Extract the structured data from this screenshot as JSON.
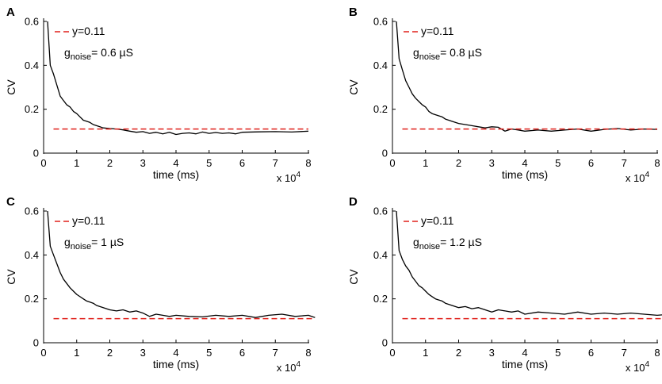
{
  "panels": [
    {
      "chart_data": {
        "type": "line",
        "panel_label": "A",
        "xlabel": "time (ms)",
        "ylabel": "CV",
        "x_multiplier": "x 10^4",
        "xlim": [
          0,
          8
        ],
        "ylim": [
          0,
          0.6
        ],
        "xticks": [
          "0",
          "1",
          "2",
          "3",
          "4",
          "5",
          "6",
          "7",
          "8"
        ],
        "yticks": [
          "0",
          "0.2",
          "0.4",
          "0.6"
        ],
        "legend": {
          "label": "y=0.11",
          "noise_symbol": "g",
          "noise_sub": "noise",
          "noise_value": "= 0.6 µS"
        },
        "series": [
          {
            "name": "CV",
            "color": "#000000",
            "x": [
              0.12,
              0.2,
              0.3,
              0.4,
              0.5,
              0.6,
              0.7,
              0.8,
              0.9,
              1.0,
              1.1,
              1.2,
              1.3,
              1.4,
              1.5,
              1.6,
              1.7,
              1.8,
              2.0,
              2.2,
              2.4,
              2.6,
              2.8,
              3.0,
              3.2,
              3.4,
              3.6,
              3.8,
              4.0,
              4.2,
              4.4,
              4.6,
              4.8,
              5.0,
              5.2,
              5.4,
              5.6,
              5.8,
              6.0,
              6.5,
              7.0,
              7.5,
              8.0
            ],
            "y": [
              0.6,
              0.4,
              0.36,
              0.31,
              0.26,
              0.24,
              0.22,
              0.21,
              0.19,
              0.18,
              0.165,
              0.15,
              0.145,
              0.14,
              0.13,
              0.125,
              0.12,
              0.115,
              0.112,
              0.11,
              0.106,
              0.1,
              0.095,
              0.098,
              0.09,
              0.095,
              0.088,
              0.095,
              0.085,
              0.09,
              0.092,
              0.088,
              0.096,
              0.09,
              0.094,
              0.09,
              0.092,
              0.088,
              0.095,
              0.097,
              0.098,
              0.096,
              0.1
            ]
          },
          {
            "name": "y=0.11",
            "color": "#e0201b",
            "dashed": true,
            "x": [
              0.3,
              8.0
            ],
            "y": [
              0.11,
              0.11
            ]
          }
        ]
      }
    },
    {
      "chart_data": {
        "type": "line",
        "panel_label": "B",
        "xlabel": "time (ms)",
        "ylabel": "CV",
        "x_multiplier": "x 10^4",
        "xlim": [
          0,
          8
        ],
        "ylim": [
          0,
          0.6
        ],
        "xticks": [
          "0",
          "1",
          "2",
          "3",
          "4",
          "5",
          "6",
          "7",
          "8"
        ],
        "yticks": [
          "0",
          "0.2",
          "0.4",
          "0.6"
        ],
        "legend": {
          "label": "y=0.11",
          "noise_symbol": "g",
          "noise_sub": "noise",
          "noise_value": "= 0.8 µS"
        },
        "series": [
          {
            "name": "CV",
            "color": "#000000",
            "x": [
              0.12,
              0.2,
              0.3,
              0.4,
              0.5,
              0.6,
              0.7,
              0.8,
              0.9,
              1.0,
              1.1,
              1.2,
              1.3,
              1.4,
              1.5,
              1.6,
              1.7,
              1.8,
              1.9,
              2.0,
              2.2,
              2.4,
              2.6,
              2.8,
              3.0,
              3.2,
              3.4,
              3.6,
              3.8,
              4.0,
              4.4,
              4.8,
              5.2,
              5.6,
              6.0,
              6.4,
              6.8,
              7.2,
              7.6,
              8.0
            ],
            "y": [
              0.6,
              0.43,
              0.38,
              0.33,
              0.3,
              0.27,
              0.25,
              0.235,
              0.22,
              0.21,
              0.19,
              0.18,
              0.175,
              0.17,
              0.165,
              0.155,
              0.15,
              0.145,
              0.14,
              0.135,
              0.13,
              0.125,
              0.12,
              0.115,
              0.12,
              0.118,
              0.1,
              0.11,
              0.105,
              0.1,
              0.105,
              0.1,
              0.105,
              0.11,
              0.1,
              0.108,
              0.112,
              0.105,
              0.11,
              0.108
            ]
          },
          {
            "name": "y=0.11",
            "color": "#e0201b",
            "dashed": true,
            "x": [
              0.3,
              8.0
            ],
            "y": [
              0.11,
              0.11
            ]
          }
        ]
      }
    },
    {
      "chart_data": {
        "type": "line",
        "panel_label": "C",
        "xlabel": "time (ms)",
        "ylabel": "CV",
        "x_multiplier": "x 10^4",
        "xlim": [
          0,
          8
        ],
        "ylim": [
          0,
          0.6
        ],
        "xticks": [
          "0",
          "1",
          "2",
          "3",
          "4",
          "5",
          "6",
          "7",
          "8"
        ],
        "yticks": [
          "0",
          "0.2",
          "0.4",
          "0.6"
        ],
        "legend": {
          "label": "y=0.11",
          "noise_symbol": "g",
          "noise_sub": "noise",
          "noise_value": "= 1 µS"
        },
        "series": [
          {
            "name": "CV",
            "color": "#000000",
            "x": [
              0.12,
              0.2,
              0.3,
              0.4,
              0.5,
              0.6,
              0.7,
              0.8,
              0.9,
              1.0,
              1.1,
              1.2,
              1.3,
              1.4,
              1.5,
              1.6,
              1.7,
              1.8,
              1.9,
              2.0,
              2.2,
              2.4,
              2.6,
              2.8,
              3.0,
              3.2,
              3.4,
              3.6,
              3.8,
              4.0,
              4.4,
              4.8,
              5.2,
              5.6,
              6.0,
              6.4,
              6.8,
              7.2,
              7.6,
              8.0,
              8.2
            ],
            "y": [
              0.6,
              0.44,
              0.4,
              0.36,
              0.32,
              0.29,
              0.27,
              0.25,
              0.235,
              0.22,
              0.21,
              0.2,
              0.19,
              0.185,
              0.18,
              0.17,
              0.165,
              0.16,
              0.155,
              0.15,
              0.145,
              0.15,
              0.14,
              0.145,
              0.135,
              0.12,
              0.13,
              0.125,
              0.12,
              0.125,
              0.12,
              0.118,
              0.125,
              0.12,
              0.125,
              0.115,
              0.125,
              0.13,
              0.12,
              0.125,
              0.115
            ]
          },
          {
            "name": "y=0.11",
            "color": "#e0201b",
            "dashed": true,
            "x": [
              0.3,
              8.2
            ],
            "y": [
              0.11,
              0.11
            ]
          }
        ]
      }
    },
    {
      "chart_data": {
        "type": "line",
        "panel_label": "D",
        "xlabel": "time (ms)",
        "ylabel": "CV",
        "x_multiplier": "x 10^4",
        "xlim": [
          0,
          8
        ],
        "ylim": [
          0,
          0.6
        ],
        "xticks": [
          "0",
          "1",
          "2",
          "3",
          "4",
          "5",
          "6",
          "7",
          "8"
        ],
        "yticks": [
          "0",
          "0.2",
          "0.4",
          "0.6"
        ],
        "legend": {
          "label": "y=0.11",
          "noise_symbol": "g",
          "noise_sub": "noise",
          "noise_value": "= 1.2 µS"
        },
        "series": [
          {
            "name": "CV",
            "color": "#000000",
            "x": [
              0.12,
              0.2,
              0.3,
              0.4,
              0.5,
              0.6,
              0.7,
              0.8,
              0.9,
              1.0,
              1.1,
              1.2,
              1.3,
              1.4,
              1.5,
              1.6,
              1.7,
              1.8,
              1.9,
              2.0,
              2.2,
              2.4,
              2.6,
              2.8,
              3.0,
              3.2,
              3.4,
              3.6,
              3.8,
              4.0,
              4.4,
              4.8,
              5.2,
              5.6,
              6.0,
              6.4,
              6.8,
              7.2,
              7.6,
              8.0,
              8.4
            ],
            "y": [
              0.6,
              0.42,
              0.38,
              0.35,
              0.33,
              0.3,
              0.28,
              0.26,
              0.25,
              0.235,
              0.22,
              0.21,
              0.2,
              0.195,
              0.19,
              0.18,
              0.175,
              0.17,
              0.165,
              0.16,
              0.165,
              0.155,
              0.16,
              0.15,
              0.14,
              0.15,
              0.145,
              0.14,
              0.145,
              0.13,
              0.14,
              0.135,
              0.13,
              0.14,
              0.13,
              0.135,
              0.13,
              0.135,
              0.13,
              0.125,
              0.13
            ]
          },
          {
            "name": "y=0.11",
            "color": "#e0201b",
            "dashed": true,
            "x": [
              0.3,
              8.4
            ],
            "y": [
              0.11,
              0.11
            ]
          }
        ]
      }
    }
  ]
}
